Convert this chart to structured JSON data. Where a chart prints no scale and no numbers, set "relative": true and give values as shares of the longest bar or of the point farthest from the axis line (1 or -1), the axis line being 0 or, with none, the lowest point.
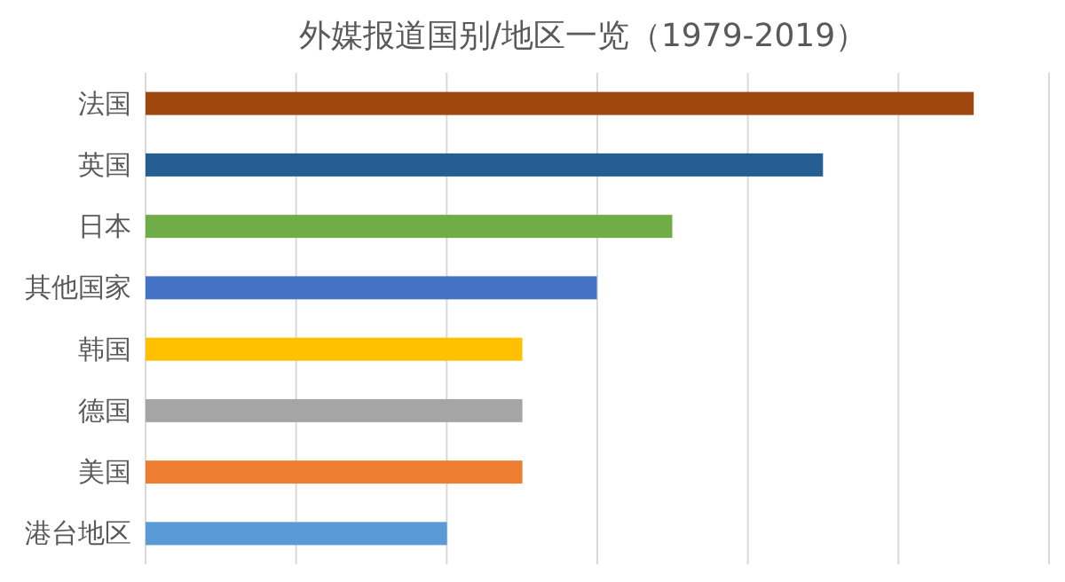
{
  "chart_data": {
    "type": "bar",
    "orientation": "horizontal",
    "relative": true,
    "title": "外媒报道国别/地区一览（1979-2019）",
    "categories": [
      "法国",
      "英国",
      "日本",
      "其他国家",
      "韩国",
      "德国",
      "美国",
      "港台地区"
    ],
    "values": [
      1,
      0.818,
      0.636,
      0.545,
      0.455,
      0.455,
      0.455,
      0.364
    ],
    "colors": [
      "#9e480e",
      "#255e91",
      "#70ad47",
      "#4472c4",
      "#ffc000",
      "#a5a5a5",
      "#ed7d31",
      "#5b9bd5"
    ],
    "grid": "x"
  }
}
